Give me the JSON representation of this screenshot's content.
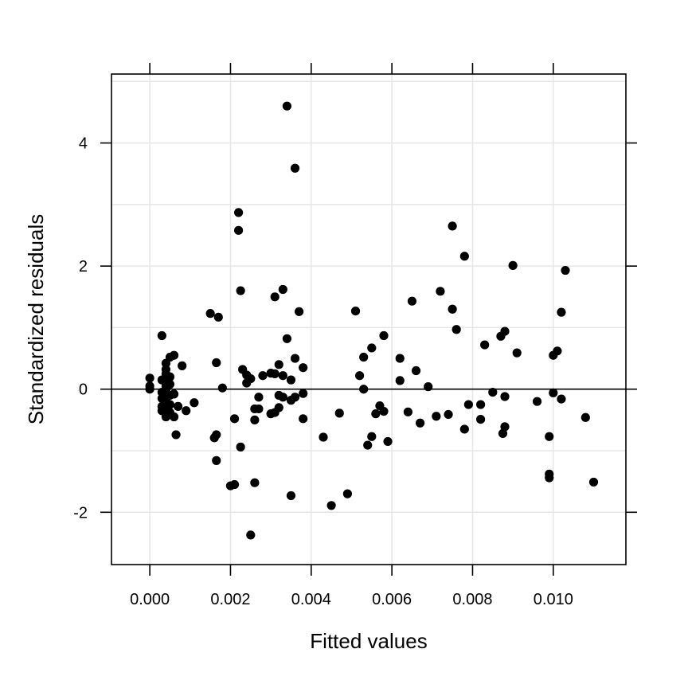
{
  "chart_data": {
    "type": "scatter",
    "title": "",
    "xlabel": "Fitted values",
    "ylabel": "Standardized residuals",
    "xlim": [
      -0.00095,
      0.0118
    ],
    "ylim": [
      -2.85,
      5.12
    ],
    "xticks": [
      0.0,
      0.002,
      0.004,
      0.006,
      0.008,
      0.01
    ],
    "xtick_labels": [
      "0.000",
      "0.002",
      "0.004",
      "0.006",
      "0.008",
      "0.010"
    ],
    "yticks": [
      -2,
      0,
      2,
      4
    ],
    "ytick_labels": [
      "-2",
      "0",
      "2",
      "4"
    ],
    "grid": true,
    "reference_line": 0,
    "colors": {
      "points": "#000000",
      "grid": "#e6e6e6",
      "axis": "#000000",
      "reference": "#000000"
    },
    "series": [
      {
        "points": [
          [
            0.0,
            0.18
          ],
          [
            0.0,
            0.05
          ],
          [
            0.0,
            0.0
          ],
          [
            0.0003,
            0.87
          ],
          [
            0.0003,
            0.15
          ],
          [
            0.0003,
            -0.05
          ],
          [
            0.0003,
            -0.15
          ],
          [
            0.0003,
            -0.28
          ],
          [
            0.0003,
            -0.35
          ],
          [
            0.0004,
            0.42
          ],
          [
            0.0004,
            0.32
          ],
          [
            0.0004,
            0.25
          ],
          [
            0.0004,
            0.18
          ],
          [
            0.0004,
            0.12
          ],
          [
            0.0004,
            0.05
          ],
          [
            0.0004,
            -0.02
          ],
          [
            0.0004,
            -0.08
          ],
          [
            0.0004,
            -0.18
          ],
          [
            0.0004,
            -0.3
          ],
          [
            0.0004,
            -0.45
          ],
          [
            0.0005,
            0.52
          ],
          [
            0.0005,
            0.2
          ],
          [
            0.0005,
            0.08
          ],
          [
            0.0005,
            -0.1
          ],
          [
            0.0005,
            -0.25
          ],
          [
            0.0005,
            -0.38
          ],
          [
            0.0006,
            0.55
          ],
          [
            0.0006,
            -0.08
          ],
          [
            0.0006,
            -0.45
          ],
          [
            0.00065,
            -0.74
          ],
          [
            0.0007,
            -0.28
          ],
          [
            0.0008,
            0.38
          ],
          [
            0.0009,
            -0.35
          ],
          [
            0.0011,
            -0.22
          ],
          [
            0.0015,
            1.23
          ],
          [
            0.0016,
            -0.79
          ],
          [
            0.00165,
            0.43
          ],
          [
            0.00165,
            -0.74
          ],
          [
            0.00165,
            -1.16
          ],
          [
            0.0017,
            1.17
          ],
          [
            0.0018,
            0.02
          ],
          [
            0.002,
            -1.57
          ],
          [
            0.0021,
            -0.48
          ],
          [
            0.0021,
            -1.55
          ],
          [
            0.0022,
            2.87
          ],
          [
            0.0022,
            2.58
          ],
          [
            0.00225,
            1.6
          ],
          [
            0.00225,
            -0.94
          ],
          [
            0.0023,
            0.32
          ],
          [
            0.0024,
            0.23
          ],
          [
            0.0024,
            0.1
          ],
          [
            0.0025,
            0.17
          ],
          [
            0.0025,
            -2.37
          ],
          [
            0.0026,
            -0.32
          ],
          [
            0.0026,
            -0.5
          ],
          [
            0.0026,
            -1.52
          ],
          [
            0.0027,
            -0.32
          ],
          [
            0.0027,
            -0.13
          ],
          [
            0.0028,
            0.22
          ],
          [
            0.003,
            0.26
          ],
          [
            0.003,
            -0.4
          ],
          [
            0.0031,
            1.5
          ],
          [
            0.0031,
            0.25
          ],
          [
            0.0031,
            -0.38
          ],
          [
            0.0032,
            0.4
          ],
          [
            0.0032,
            -0.3
          ],
          [
            0.0032,
            -0.1
          ],
          [
            0.0033,
            1.62
          ],
          [
            0.0033,
            0.22
          ],
          [
            0.0033,
            -0.13
          ],
          [
            0.0034,
            0.82
          ],
          [
            0.0034,
            4.6
          ],
          [
            0.0035,
            0.15
          ],
          [
            0.0035,
            -0.18
          ],
          [
            0.0035,
            -1.73
          ],
          [
            0.0036,
            3.59
          ],
          [
            0.0036,
            0.5
          ],
          [
            0.0036,
            -0.13
          ],
          [
            0.0037,
            1.26
          ],
          [
            0.0038,
            0.35
          ],
          [
            0.0038,
            -0.07
          ],
          [
            0.0038,
            -0.48
          ],
          [
            0.0043,
            -0.78
          ],
          [
            0.0045,
            -1.89
          ],
          [
            0.0047,
            -0.39
          ],
          [
            0.0049,
            -1.7
          ],
          [
            0.0051,
            1.27
          ],
          [
            0.0052,
            0.22
          ],
          [
            0.0053,
            0.52
          ],
          [
            0.0053,
            0.0
          ],
          [
            0.0054,
            -0.91
          ],
          [
            0.0055,
            0.67
          ],
          [
            0.0055,
            -0.77
          ],
          [
            0.0056,
            -0.4
          ],
          [
            0.0057,
            -0.27
          ],
          [
            0.0058,
            0.87
          ],
          [
            0.0058,
            -0.36
          ],
          [
            0.0059,
            -0.85
          ],
          [
            0.0062,
            0.5
          ],
          [
            0.0062,
            0.14
          ],
          [
            0.0064,
            -0.37
          ],
          [
            0.0065,
            1.43
          ],
          [
            0.0066,
            0.3
          ],
          [
            0.0067,
            -0.55
          ],
          [
            0.0069,
            0.04
          ],
          [
            0.0071,
            -0.44
          ],
          [
            0.0072,
            1.59
          ],
          [
            0.0074,
            -0.41
          ],
          [
            0.0075,
            2.65
          ],
          [
            0.0075,
            1.3
          ],
          [
            0.0076,
            0.97
          ],
          [
            0.0078,
            2.16
          ],
          [
            0.0078,
            -0.65
          ],
          [
            0.0079,
            -0.25
          ],
          [
            0.0082,
            -0.25
          ],
          [
            0.0082,
            -0.49
          ],
          [
            0.0083,
            0.72
          ],
          [
            0.0085,
            -0.05
          ],
          [
            0.0087,
            0.86
          ],
          [
            0.00875,
            -0.72
          ],
          [
            0.0088,
            0.94
          ],
          [
            0.0088,
            -0.12
          ],
          [
            0.0088,
            -0.61
          ],
          [
            0.009,
            2.01
          ],
          [
            0.0091,
            0.59
          ],
          [
            0.0096,
            -0.2
          ],
          [
            0.0099,
            -1.38
          ],
          [
            0.0099,
            -0.77
          ],
          [
            0.0099,
            -1.44
          ],
          [
            0.01,
            0.55
          ],
          [
            0.01,
            -0.06
          ],
          [
            0.0101,
            0.62
          ],
          [
            0.0102,
            1.25
          ],
          [
            0.0102,
            -0.16
          ],
          [
            0.0103,
            1.93
          ],
          [
            0.0108,
            -0.46
          ],
          [
            0.011,
            -1.51
          ]
        ]
      }
    ]
  }
}
